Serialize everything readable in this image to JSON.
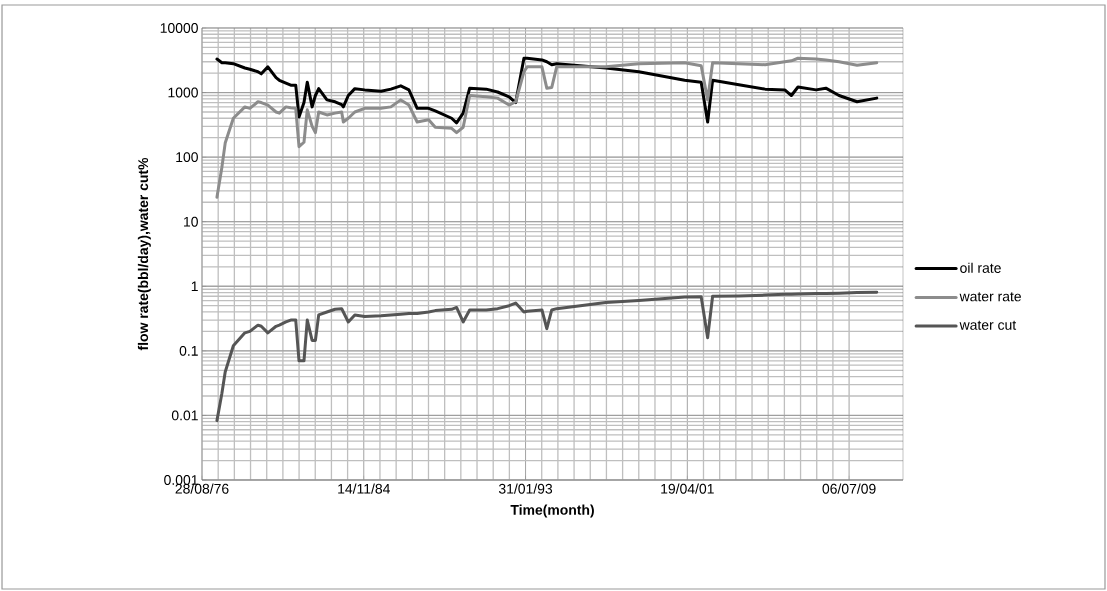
{
  "chart_data": {
    "type": "line",
    "xlabel": "Time(month)",
    "ylabel": "flow rate(bbl/day),water cut%",
    "x": [
      "1977-06",
      "1977-09",
      "1977-11",
      "1978-04",
      "1978-11",
      "1979-02",
      "1979-07",
      "1979-09",
      "1980-01",
      "1980-06",
      "1980-08",
      "1980-12",
      "1981-03",
      "1981-06",
      "1981-08",
      "1981-11",
      "1982-01",
      "1982-04",
      "1982-06",
      "1982-08",
      "1983-01",
      "1983-06",
      "1983-10",
      "1983-11",
      "1984-02",
      "1984-06",
      "1984-12",
      "1985-10",
      "1986-04",
      "1986-10",
      "1987-03",
      "1987-08",
      "1988-03",
      "1988-07",
      "1989-05",
      "1989-08",
      "1989-12",
      "1990-04",
      "1991-02",
      "1991-09",
      "1992-04",
      "1992-08",
      "1993-01",
      "1993-03",
      "1993-12",
      "1994-03",
      "1994-06",
      "1994-09",
      "1997-03",
      "1998-11",
      "2001-03",
      "2002-01",
      "2002-05",
      "2002-08",
      "2003-12",
      "2005-04",
      "2006-04",
      "2006-08",
      "2006-12",
      "2007-11",
      "2008-05",
      "2009-01",
      "2009-12",
      "2010-12"
    ],
    "series": [
      {
        "name": "oil rate",
        "color": "#000000",
        "values": [
          3300,
          2900,
          2900,
          2800,
          2400,
          2300,
          2100,
          1950,
          2500,
          1700,
          1550,
          1400,
          1300,
          1300,
          420,
          700,
          1450,
          600,
          900,
          1150,
          770,
          720,
          650,
          600,
          900,
          1150,
          1100,
          1050,
          1130,
          1270,
          1100,
          570,
          570,
          520,
          400,
          340,
          480,
          1170,
          1130,
          1020,
          860,
          700,
          3400,
          3400,
          3200,
          3000,
          2700,
          2800,
          2400,
          2100,
          1550,
          1450,
          350,
          1550,
          1320,
          1130,
          1100,
          900,
          1220,
          1100,
          1170,
          900,
          720,
          820
        ]
      },
      {
        "name": "water rate",
        "color": "#8c8c8c",
        "values": [
          24,
          70,
          165,
          400,
          600,
          570,
          720,
          700,
          640,
          500,
          480,
          600,
          580,
          570,
          145,
          170,
          540,
          300,
          240,
          500,
          450,
          480,
          500,
          350,
          400,
          500,
          570,
          570,
          600,
          770,
          640,
          350,
          380,
          290,
          280,
          240,
          290,
          900,
          860,
          820,
          640,
          720,
          2100,
          2500,
          2500,
          1170,
          1200,
          2500,
          2500,
          2800,
          2900,
          2600,
          770,
          2900,
          2800,
          2700,
          3000,
          3100,
          3400,
          3300,
          3200,
          3000,
          2650,
          2900
        ]
      },
      {
        "name": "water cut",
        "color": "#555555",
        "values": [
          0.0083,
          0.022,
          0.047,
          0.12,
          0.19,
          0.2,
          0.25,
          0.24,
          0.19,
          0.24,
          0.25,
          0.28,
          0.3,
          0.3,
          0.07,
          0.07,
          0.3,
          0.145,
          0.145,
          0.36,
          0.4,
          0.44,
          0.45,
          0.4,
          0.28,
          0.36,
          0.34,
          0.35,
          0.36,
          0.37,
          0.38,
          0.38,
          0.4,
          0.42,
          0.44,
          0.47,
          0.28,
          0.43,
          0.43,
          0.45,
          0.5,
          0.55,
          0.4,
          0.41,
          0.43,
          0.22,
          0.43,
          0.45,
          0.56,
          0.6,
          0.68,
          0.69,
          0.16,
          0.7,
          0.71,
          0.73,
          0.75,
          0.75,
          0.76,
          0.77,
          0.77,
          0.78,
          0.8,
          0.81
        ]
      }
    ],
    "xlim": [
      "1976-08-28",
      "2012-04-01"
    ],
    "xticks": [
      {
        "value": "1976-08-28",
        "label": "28/08/76"
      },
      {
        "value": "1984-11-14",
        "label": "14/11/84"
      },
      {
        "value": "1993-01-31",
        "label": "31/01/93"
      },
      {
        "value": "2001-04-19",
        "label": "19/04/01"
      },
      {
        "value": "2009-07-06",
        "label": "06/07/09"
      }
    ],
    "ylim": [
      0.001,
      10000
    ],
    "yticks": [
      0.001,
      0.01,
      0.1,
      1,
      10,
      100,
      1000,
      10000
    ],
    "log": true,
    "grid": true,
    "legend": "right",
    "marker": "none",
    "line_style": "solid"
  }
}
